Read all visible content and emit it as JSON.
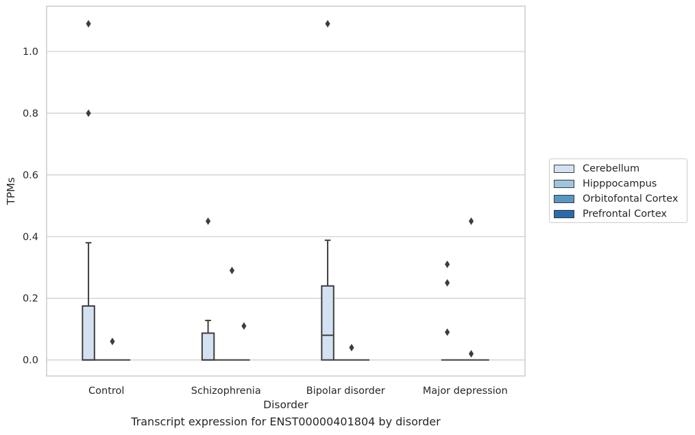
{
  "chart_data": {
    "type": "box",
    "xlabel": "Disorder",
    "ylabel": "TPMs",
    "ylim": [
      -0.052,
      1.147
    ],
    "yticks": [
      0.0,
      0.2,
      0.4,
      0.6,
      0.8,
      1.0
    ],
    "ytick_labels": [
      "0.0",
      "0.2",
      "0.4",
      "0.6",
      "0.8",
      "1.0"
    ],
    "grid": "horizontal",
    "legend_position": "right",
    "categories": [
      "Control",
      "Schizophrenia",
      "Bipolar disorder",
      "Major depression"
    ],
    "series": [
      {
        "name": "Cerebellum",
        "color": "#d3e2f2",
        "boxes": [
          {
            "q1": 0.0,
            "median": 0.0,
            "q3": 0.175,
            "whisker_low": 0.0,
            "whisker_high": 0.38,
            "outliers": [
              0.8,
              1.09
            ]
          },
          {
            "q1": 0.0,
            "median": 0.0,
            "q3": 0.087,
            "whisker_low": 0.0,
            "whisker_high": 0.128,
            "outliers": [
              0.45
            ]
          },
          {
            "q1": 0.0,
            "median": 0.08,
            "q3": 0.24,
            "whisker_low": 0.0,
            "whisker_high": 0.388,
            "outliers": [
              1.09
            ]
          },
          {
            "q1": 0.0,
            "median": 0.0,
            "q3": 0.0,
            "whisker_low": 0.0,
            "whisker_high": 0.0,
            "outliers": [
              0.09,
              0.25,
              0.31
            ]
          }
        ]
      },
      {
        "name": "Hipppocampus",
        "color": "#9ec5de",
        "boxes": [
          {
            "q1": 0.0,
            "median": 0.0,
            "q3": 0.0,
            "whisker_low": 0.0,
            "whisker_high": 0.0,
            "outliers": []
          },
          {
            "q1": 0.0,
            "median": 0.0,
            "q3": 0.0,
            "whisker_low": 0.0,
            "whisker_high": 0.0,
            "outliers": []
          },
          {
            "q1": 0.0,
            "median": 0.0,
            "q3": 0.0,
            "whisker_low": 0.0,
            "whisker_high": 0.0,
            "outliers": []
          },
          {
            "q1": 0.0,
            "median": 0.0,
            "q3": 0.0,
            "whisker_low": 0.0,
            "whisker_high": 0.0,
            "outliers": []
          }
        ]
      },
      {
        "name": "Orbitofontal Cortex",
        "color": "#5896c3",
        "boxes": [
          {
            "q1": 0.0,
            "median": 0.0,
            "q3": 0.0,
            "whisker_low": 0.0,
            "whisker_high": 0.0,
            "outliers": [
              0.06
            ]
          },
          {
            "q1": 0.0,
            "median": 0.0,
            "q3": 0.0,
            "whisker_low": 0.0,
            "whisker_high": 0.0,
            "outliers": [
              0.29
            ]
          },
          {
            "q1": 0.0,
            "median": 0.0,
            "q3": 0.0,
            "whisker_low": 0.0,
            "whisker_high": 0.0,
            "outliers": [
              0.04
            ]
          },
          {
            "q1": 0.0,
            "median": 0.0,
            "q3": 0.0,
            "whisker_low": 0.0,
            "whisker_high": 0.0,
            "outliers": [
              0.02,
              0.45
            ]
          }
        ]
      },
      {
        "name": "Prefrontal Cortex",
        "color": "#2a6aaa",
        "boxes": [
          {
            "q1": 0.0,
            "median": 0.0,
            "q3": 0.0,
            "whisker_low": 0.0,
            "whisker_high": 0.0,
            "outliers": []
          },
          {
            "q1": 0.0,
            "median": 0.0,
            "q3": 0.0,
            "whisker_low": 0.0,
            "whisker_high": 0.0,
            "outliers": [
              0.11
            ]
          },
          {
            "q1": 0.0,
            "median": 0.0,
            "q3": 0.0,
            "whisker_low": 0.0,
            "whisker_high": 0.0,
            "outliers": []
          },
          {
            "q1": 0.0,
            "median": 0.0,
            "q3": 0.0,
            "whisker_low": 0.0,
            "whisker_high": 0.0,
            "outliers": []
          }
        ]
      }
    ]
  },
  "caption": "Transcript expression for ENST00000401804 by disorder"
}
